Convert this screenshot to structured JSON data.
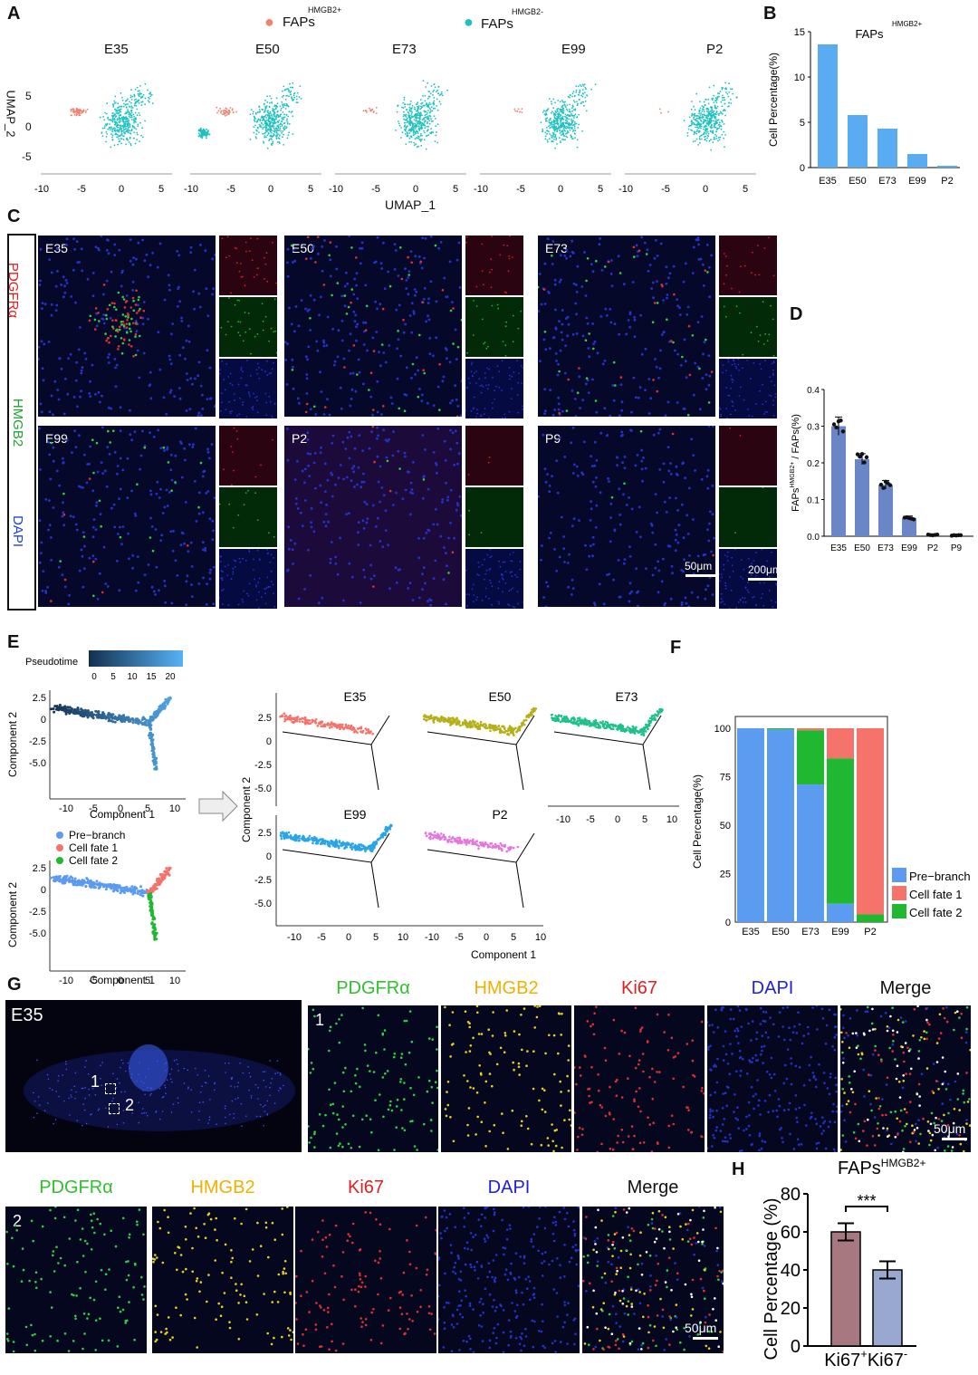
{
  "panels": {
    "a": "A",
    "b": "B",
    "c": "C",
    "d": "D",
    "e": "E",
    "f": "F",
    "g": "G",
    "h": "H"
  },
  "umap": {
    "legend": [
      {
        "label": "FAPs",
        "sup": "HMGB2+",
        "color": "#f08070"
      },
      {
        "label": "FAPs",
        "sup": "HMGB2-",
        "color": "#20c0c0"
      }
    ],
    "stages": [
      "E35",
      "E50",
      "E73",
      "E99",
      "P2"
    ],
    "ylabel": "UMAP_2",
    "xlabel": "UMAP_1",
    "yticks": [
      "5",
      "0",
      "-5"
    ],
    "xticks": [
      "-10",
      "-5",
      "0",
      "5"
    ]
  },
  "panel_c": {
    "channels": [
      {
        "label": "PDGFRα",
        "color": "#e02020"
      },
      {
        "label": "HMGB2",
        "color": "#20a030"
      },
      {
        "label": "DAPI",
        "color": "#2040e0"
      }
    ],
    "tiles": [
      "E35",
      "E50",
      "E73",
      "E99",
      "P2",
      "P9"
    ],
    "scale_a": "50μm",
    "scale_b": "200μm"
  },
  "panel_g": {
    "overview_tag": "E35",
    "roi1": "1",
    "roi2": "2",
    "row1_tag": "1",
    "row2_tag": "2",
    "channels": [
      {
        "label": "PDGFRα",
        "color": "#30c030"
      },
      {
        "label": "HMGB2",
        "color": "#f0b000"
      },
      {
        "label": "Ki67",
        "color": "#e02020"
      },
      {
        "label": "DAPI",
        "color": "#2020e0"
      },
      {
        "label": "Merge",
        "color": "#111111"
      }
    ],
    "scale": "50μm"
  },
  "pseudotime": {
    "legend_title": "Pseudotime",
    "legend_ticks": [
      "0",
      "5",
      "10",
      "15",
      "20"
    ],
    "ylabel": "Component 2",
    "xlabel": "Component 1",
    "yticks": [
      "2.5",
      "0",
      "-2.5",
      "-5.0"
    ],
    "xticks": [
      "-10",
      "-5",
      "0",
      "5",
      "10"
    ],
    "state_legend": [
      {
        "label": "Pre−branch",
        "color": "#5b9bf0"
      },
      {
        "label": "Cell fate 1",
        "color": "#f5736a"
      },
      {
        "label": "Cell fate 2",
        "color": "#1fb830"
      }
    ],
    "stage_plots": [
      {
        "label": "E35",
        "color": "#f5736a"
      },
      {
        "label": "E50",
        "color": "#b5b01a"
      },
      {
        "label": "E73",
        "color": "#20c08a"
      },
      {
        "label": "E99",
        "color": "#29a5e8"
      },
      {
        "label": "P2",
        "color": "#e675e0"
      }
    ]
  },
  "chart_data": [
    {
      "id": "B",
      "type": "bar",
      "title": "FAPs",
      "title_sup": "HMGB2+",
      "ylabel": "Cell Percentage(%)",
      "xlabel": "",
      "categories": [
        "E35",
        "E50",
        "E73",
        "E99",
        "P2"
      ],
      "values": [
        13.6,
        5.8,
        4.3,
        1.5,
        0.2
      ],
      "ylim": [
        0,
        15
      ],
      "yticks": [
        0,
        5,
        10,
        15
      ],
      "color": "#5aacf2"
    },
    {
      "id": "D",
      "type": "bar",
      "title": "",
      "ylabel": "FAPs^HMGB2+ / FAPs(%)",
      "ylabel_main": "FAPs",
      "ylabel_sup": "HMGB2+",
      "ylabel_rest": " / FAPs(%)",
      "xlabel": "",
      "categories": [
        "E35",
        "E50",
        "E73",
        "E99",
        "P2",
        "P9"
      ],
      "values": [
        0.3,
        0.21,
        0.14,
        0.05,
        0.003,
        0.002
      ],
      "errors": [
        0.025,
        0.015,
        0.012,
        0.005,
        0.002,
        0.001
      ],
      "ylim": [
        0,
        0.4
      ],
      "yticks": [
        0.0,
        0.1,
        0.2,
        0.3,
        0.4
      ],
      "color": "#6a86c6"
    },
    {
      "id": "F",
      "type": "bar",
      "stacked": true,
      "title": "",
      "ylabel": "Cell Percentage(%)",
      "xlabel": "",
      "categories": [
        "E35",
        "E50",
        "E73",
        "E99",
        "P2"
      ],
      "series": [
        {
          "name": "Pre−branch",
          "values": [
            100,
            99.5,
            71,
            9.5,
            0
          ],
          "color": "#5b9bf0"
        },
        {
          "name": "Cell fate 2",
          "values": [
            0,
            0.5,
            28,
            75,
            4
          ],
          "color": "#1fb830"
        },
        {
          "name": "Cell fate 1",
          "values": [
            0,
            0,
            1,
            15.5,
            96
          ],
          "color": "#f5736a"
        }
      ],
      "ylim": [
        0,
        100
      ],
      "yticks": [
        0,
        25,
        50,
        75,
        100
      ],
      "legend_position": "right"
    },
    {
      "id": "H",
      "type": "bar",
      "title": "FAPs",
      "title_sup": "HMGB2+",
      "ylabel": "Cell Percentage (%)",
      "xlabel": "",
      "categories": [
        "Ki67+",
        "Ki67-"
      ],
      "category_main": [
        "Ki67",
        "Ki67"
      ],
      "category_sup": [
        "+",
        "-"
      ],
      "values": [
        60,
        40
      ],
      "errors": [
        4.5,
        4.5
      ],
      "colors": [
        "#a87880",
        "#98a8d0"
      ],
      "ylim": [
        0,
        80
      ],
      "yticks": [
        0,
        20,
        40,
        60,
        80
      ],
      "significance": "***"
    }
  ]
}
